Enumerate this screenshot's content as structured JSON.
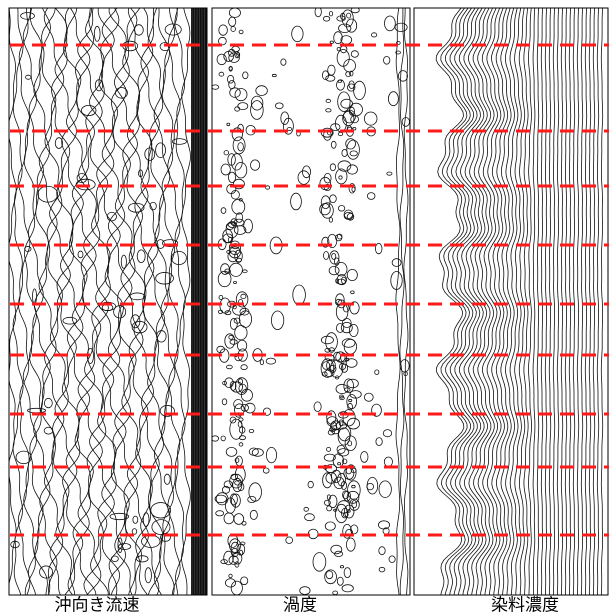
{
  "panels": [
    {
      "label": "沖向き流速"
    },
    {
      "label": "渦度"
    },
    {
      "label": "染料濃度"
    }
  ]
}
